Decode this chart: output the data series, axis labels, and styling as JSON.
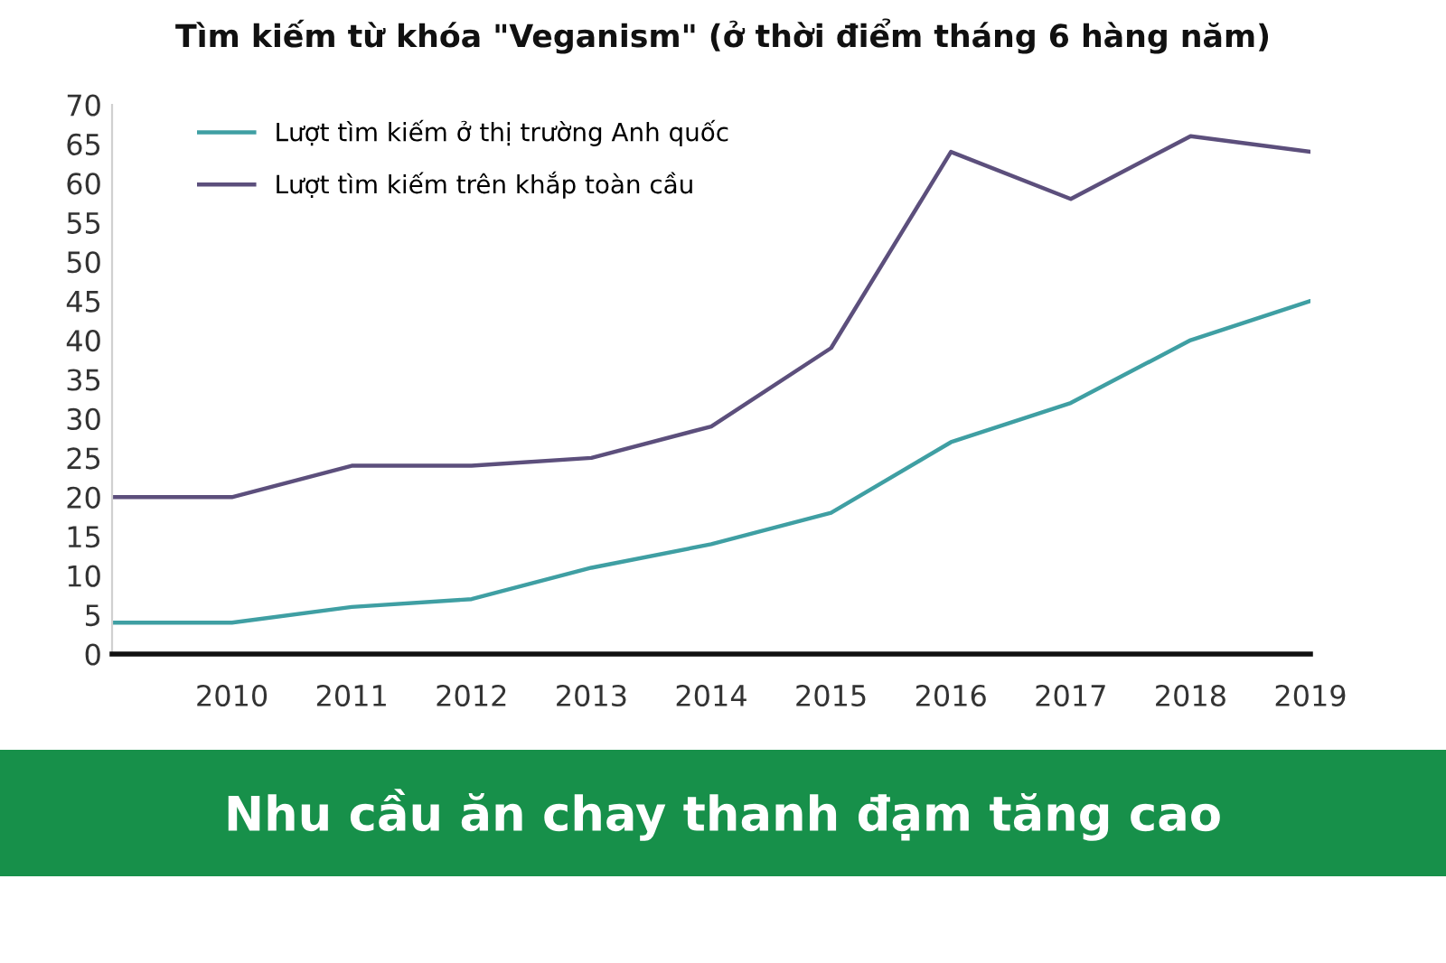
{
  "chart_data": {
    "type": "line",
    "title": "Tìm kiếm từ khóa \"Veganism\" (ở thời điểm tháng 6 hàng năm)",
    "categories": [
      null,
      "2010",
      "2011",
      "2012",
      "2013",
      "2014",
      "2015",
      "2016",
      "2017",
      "2018",
      "2019"
    ],
    "series": [
      {
        "name": "Lượt tìm kiếm ở thị trường Anh quốc",
        "color": "#3f9fa3",
        "values": [
          4,
          4,
          6,
          7,
          11,
          14,
          18,
          27,
          32,
          40,
          45
        ]
      },
      {
        "name": "Lượt tìm kiếm trên khắp toàn cầu",
        "color": "#5c4f7c",
        "values": [
          20,
          20,
          24,
          24,
          25,
          29,
          39,
          64,
          58,
          66,
          64
        ]
      }
    ],
    "ylim": [
      0,
      70
    ],
    "yticks": [
      0,
      5,
      10,
      15,
      20,
      25,
      30,
      35,
      40,
      45,
      50,
      55,
      60,
      65,
      70
    ],
    "grid": false,
    "legend": "top left",
    "marker": "none",
    "line_style": "solid",
    "annotations": [
      "Nhu cầu ăn chay thanh đạm tăng cao"
    ]
  }
}
